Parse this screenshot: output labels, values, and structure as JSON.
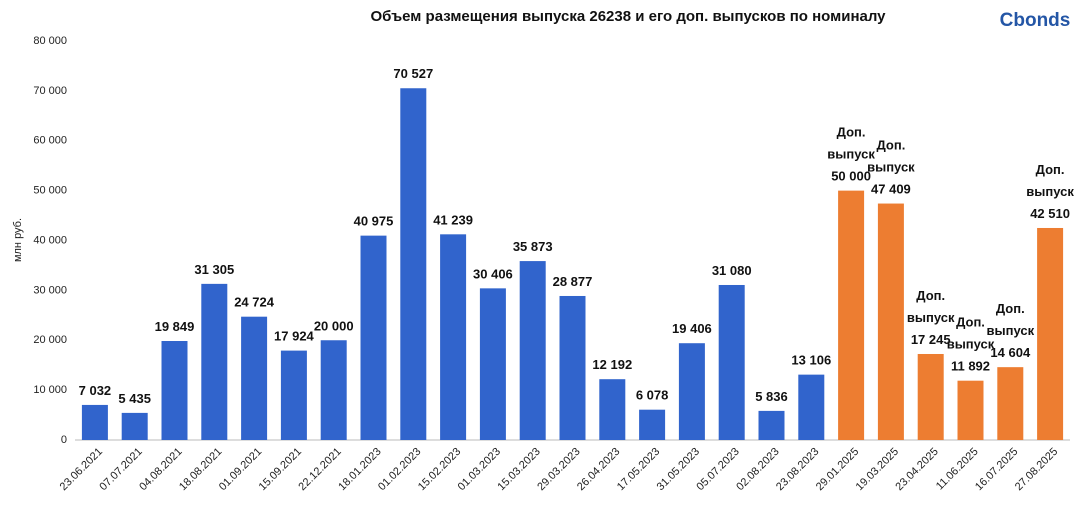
{
  "chart_data": {
    "type": "bar",
    "title": "Объем размещения выпуска 26238 и его доп. выпусков по номиналу",
    "logo": "Cbonds",
    "y_label": "млн руб.",
    "categories": [
      "23.06.2021",
      "07.07.2021",
      "04.08.2021",
      "18.08.2021",
      "01.09.2021",
      "15.09.2021",
      "22.12.2021",
      "18.01.2023",
      "01.02.2023",
      "15.02.2023",
      "01.03.2023",
      "15.03.2023",
      "29.03.2023",
      "26.04.2023",
      "17.05.2023",
      "31.05.2023",
      "05.07.2023",
      "02.08.2023",
      "23.08.2023",
      "29.01.2025",
      "19.03.2025",
      "23.04.2025",
      "11.06.2025",
      "16.07.2025",
      "27.08.2025"
    ],
    "values": [
      7032,
      5435,
      19849,
      31305,
      24724,
      17924,
      20000,
      40975,
      70527,
      41239,
      30406,
      35873,
      28877,
      12192,
      6078,
      19406,
      31080,
      5836,
      13106,
      50000,
      47409,
      17245,
      11892,
      14604,
      42510
    ],
    "value_labels": [
      "7 032",
      "5 435",
      "19 849",
      "31 305",
      "24 724",
      "17 924",
      "20 000",
      "40 975",
      "70 527",
      "41 239",
      "30 406",
      "35 873",
      "28 877",
      "12 192",
      "6 078",
      "19 406",
      "31 080",
      "5 836",
      "13 106",
      "Доп.\nвыпуск\n50 000",
      "Доп.\nвыпуск\n47 409",
      "Доп.\nвыпуск\n17 245",
      "Доп.\nвыпуск\n11 892",
      "Доп.\nвыпуск\n14 604",
      "Доп.\nвыпуск\n42 510"
    ],
    "colors": [
      "#3164cc",
      "#3164cc",
      "#3164cc",
      "#3164cc",
      "#3164cc",
      "#3164cc",
      "#3164cc",
      "#3164cc",
      "#3164cc",
      "#3164cc",
      "#3164cc",
      "#3164cc",
      "#3164cc",
      "#3164cc",
      "#3164cc",
      "#3164cc",
      "#3164cc",
      "#3164cc",
      "#3164cc",
      "#ed7d31",
      "#ed7d31",
      "#ed7d31",
      "#ed7d31",
      "#ed7d31",
      "#ed7d31"
    ],
    "ylim": [
      0,
      80000
    ],
    "yticks": [
      0,
      {
        "value": 10000,
        "label": "10 000"
      },
      {
        "value": 20000,
        "label": "20 000"
      },
      {
        "value": 30000,
        "label": "30 000"
      },
      {
        "value": 40000,
        "label": "40 000"
      },
      {
        "value": 50000,
        "label": "50 000"
      },
      {
        "value": 60000,
        "label": "60 000"
      },
      {
        "value": 70000,
        "label": "70 000"
      },
      {
        "value": 80000,
        "label": "80 000"
      }
    ],
    "grid": false
  }
}
